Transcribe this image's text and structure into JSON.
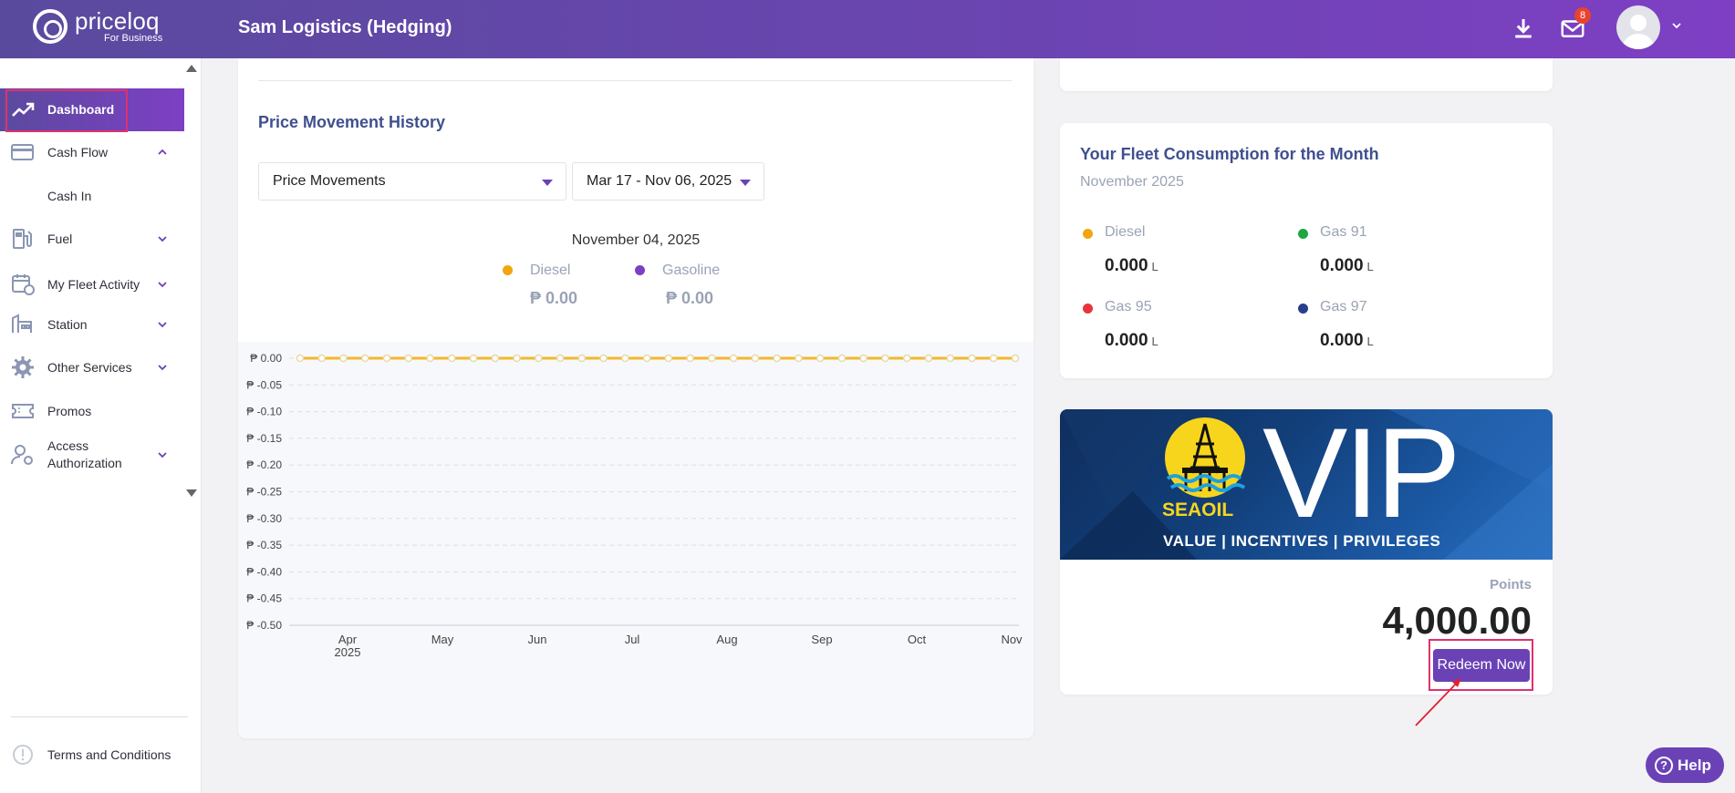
{
  "brand": {
    "name": "priceloq",
    "sub": "For Business"
  },
  "header": {
    "title": "Sam Logistics (Hedging)",
    "notification_count": "8",
    "download_icon": "download-icon",
    "mail_icon": "mail-icon"
  },
  "sidebar": {
    "items": [
      {
        "label": "Dashboard",
        "icon": "trend-icon",
        "active": true
      },
      {
        "label": "Cash Flow",
        "icon": "card-icon",
        "expanded": true
      },
      {
        "label": "Cash In",
        "icon": "",
        "sub": true
      },
      {
        "label": "Fuel",
        "icon": "fuel-pump-icon"
      },
      {
        "label": "My Fleet Activity",
        "icon": "fleet-calendar-icon"
      },
      {
        "label": "Station",
        "icon": "station-icon"
      },
      {
        "label": "Other Services",
        "icon": "gear-icon"
      },
      {
        "label": "Promos",
        "icon": "ticket-icon"
      },
      {
        "label": "Access Authorization",
        "icon": "user-key-icon"
      }
    ],
    "terms": "Terms and Conditions"
  },
  "price_history": {
    "title": "Price Movement History",
    "select_type": "Price Movements",
    "select_range": "Mar 17 - Nov 06, 2025",
    "date": "November 04, 2025",
    "legend": [
      {
        "name": "Diesel",
        "value": "₱ 0.00",
        "color": "#f2a50d"
      },
      {
        "name": "Gasoline",
        "value": "₱ 0.00",
        "color": "#7b3fc4"
      }
    ]
  },
  "chart_data": {
    "type": "line",
    "title": "",
    "xlabel": "",
    "ylabel": "",
    "x_ticks": [
      "Apr\n2025",
      "May",
      "Jun",
      "Jul",
      "Aug",
      "Sep",
      "Oct",
      "Nov"
    ],
    "y_ticks": [
      "₱ 0.00",
      "₱ -0.05",
      "₱ -0.10",
      "₱ -0.15",
      "₱ -0.20",
      "₱ -0.25",
      "₱ -0.30",
      "₱ -0.35",
      "₱ -0.40",
      "₱ -0.45",
      "₱ -0.50"
    ],
    "ylim": [
      -0.5,
      0
    ],
    "grid": true,
    "series": [
      {
        "name": "Diesel",
        "color": "#f2b82e",
        "points": 34,
        "value": 0
      }
    ]
  },
  "fleet": {
    "title": "Your Fleet Consumption for the Month",
    "month": "November 2025",
    "fuels": [
      {
        "name": "Diesel",
        "value": "0.000",
        "unit": "L",
        "color": "#f2a50d"
      },
      {
        "name": "Gas 91",
        "value": "0.000",
        "unit": "L",
        "color": "#1da641"
      },
      {
        "name": "Gas 95",
        "value": "0.000",
        "unit": "L",
        "color": "#e8353a"
      },
      {
        "name": "Gas 97",
        "value": "0.000",
        "unit": "L",
        "color": "#2b3c8f"
      }
    ]
  },
  "vip": {
    "brand": "SEAOIL",
    "big": "VIP",
    "tagline": "VALUE | INCENTIVES | PRIVILEGES",
    "points_label": "Points",
    "points_value": "4,000.00",
    "redeem_label": "Redeem Now"
  },
  "help": {
    "label": "Help"
  }
}
